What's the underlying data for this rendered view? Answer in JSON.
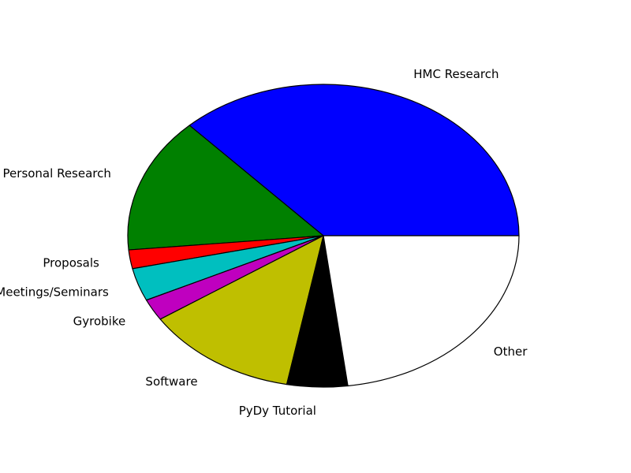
{
  "chart_data": {
    "type": "pie",
    "title": "",
    "start_angle": 0,
    "direction": "counterclockwise",
    "labels": [
      "HMC Research",
      "Personal Research",
      "Proposals",
      "Meetings/Seminars",
      "Gyrobike",
      "Software",
      "PyDy Tutorial",
      "Other"
    ],
    "values": [
      37.0,
      14.5,
      2.0,
      3.5,
      2.3,
      12.7,
      5.0,
      23.0
    ],
    "colors": [
      "#0000ff",
      "#008000",
      "#ff0000",
      "#00bfbf",
      "#bf00bf",
      "#bfbf00",
      "#000000",
      "#ffffff"
    ]
  }
}
